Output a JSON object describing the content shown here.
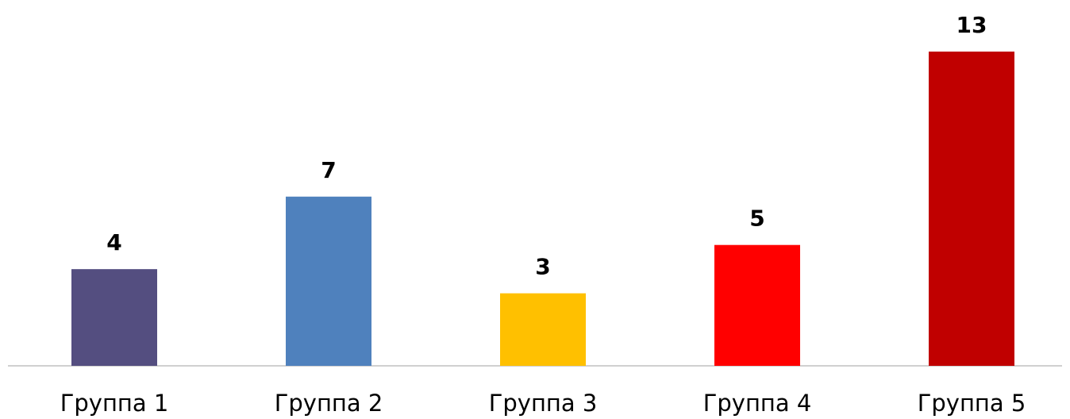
{
  "chart_data": {
    "type": "bar",
    "categories": [
      "Группа 1",
      "Группа 2",
      "Группа 3",
      "Группа 4",
      "Группа 5"
    ],
    "values": [
      4,
      7,
      3,
      5,
      13
    ],
    "colors": [
      "#544e80",
      "#4f81bd",
      "#ffc000",
      "#ff0000",
      "#c00000"
    ],
    "ylim": [
      0,
      13
    ]
  }
}
